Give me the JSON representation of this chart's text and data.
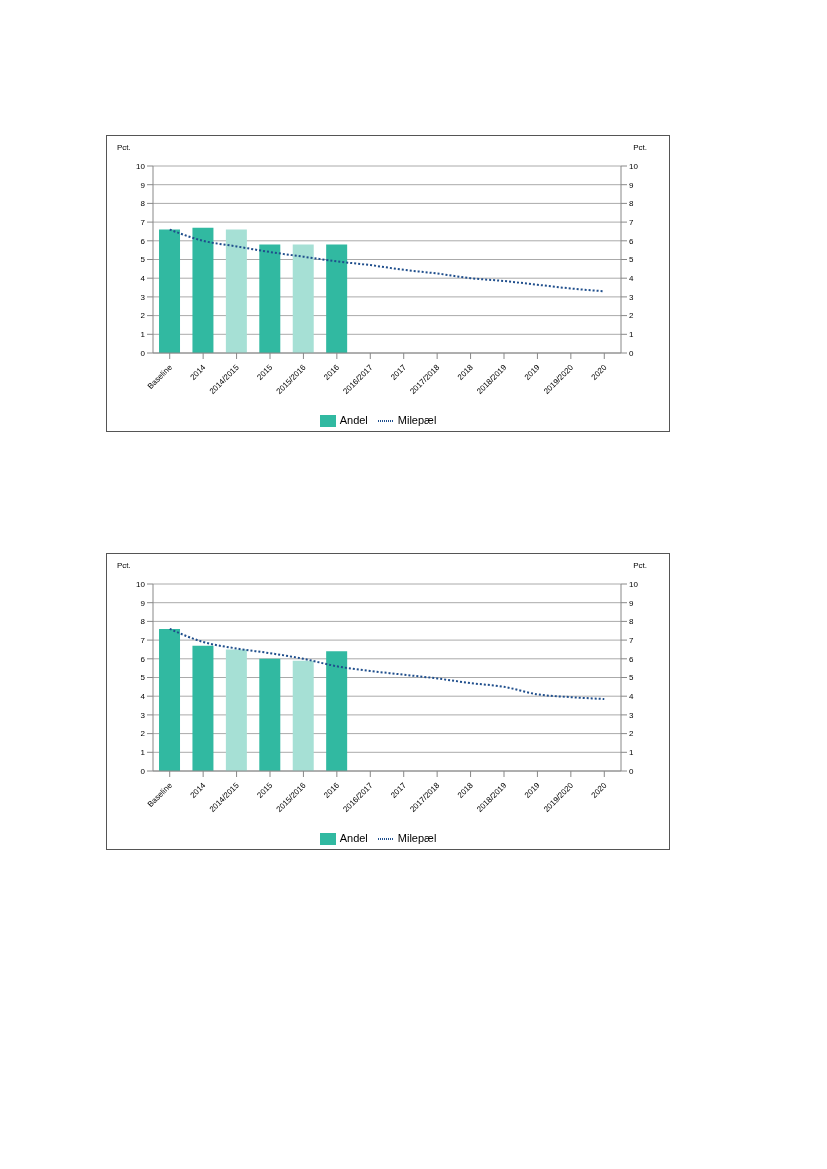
{
  "chart_data": [
    {
      "type": "bar",
      "ylabel": "Pct.",
      "y2label": "Pct.",
      "categories": [
        "Baseline",
        "2014",
        "2014/2015",
        "2015",
        "2015/2016",
        "2016",
        "2016/2017",
        "2017",
        "2017/2018",
        "2018",
        "2018/2019",
        "2019",
        "2019/2020",
        "2020"
      ],
      "series": [
        {
          "name": "Andel",
          "color": "#31b9a1",
          "colors": [
            "#31b9a1",
            "#31b9a1",
            "#a6e0d5",
            "#31b9a1",
            "#a6e0d5",
            "#31b9a1",
            "#31b9a1",
            "#31b9a1",
            "#31b9a1",
            "#31b9a1",
            "#31b9a1",
            "#31b9a1",
            "#31b9a1",
            "#31b9a1"
          ],
          "values": [
            6.6,
            6.7,
            6.6,
            5.8,
            5.8,
            5.8,
            null,
            null,
            null,
            null,
            null,
            null,
            null,
            null
          ]
        },
        {
          "name": "Milepæl",
          "type": "line",
          "color": "#1f4e8c",
          "line_style": "dotted",
          "marker": "none",
          "values": [
            6.6,
            6.0,
            5.7,
            5.4,
            5.15,
            4.9,
            4.7,
            4.45,
            4.25,
            4.0,
            3.85,
            3.65,
            3.45,
            3.3
          ]
        }
      ],
      "ylim": [
        0,
        10
      ],
      "yticks": [
        0,
        1,
        2,
        3,
        4,
        5,
        6,
        7,
        8,
        9,
        10
      ],
      "y2lim": [
        0,
        10
      ],
      "y2ticks": [
        0,
        1,
        2,
        3,
        4,
        5,
        6,
        7,
        8,
        9,
        10
      ],
      "grid": "y",
      "legend": "bottom"
    },
    {
      "type": "bar",
      "ylabel": "Pct.",
      "y2label": "Pct.",
      "categories": [
        "Baseline",
        "2014",
        "2014/2015",
        "2015",
        "2015/2016",
        "2016",
        "2016/2017",
        "2017",
        "2017/2018",
        "2018",
        "2018/2019",
        "2019",
        "2019/2020",
        "2020"
      ],
      "series": [
        {
          "name": "Andel",
          "color": "#31b9a1",
          "colors": [
            "#31b9a1",
            "#31b9a1",
            "#a6e0d5",
            "#31b9a1",
            "#a6e0d5",
            "#31b9a1",
            "#31b9a1",
            "#31b9a1",
            "#31b9a1",
            "#31b9a1",
            "#31b9a1",
            "#31b9a1",
            "#31b9a1",
            "#31b9a1"
          ],
          "values": [
            7.6,
            6.7,
            6.5,
            6.0,
            5.9,
            6.4,
            null,
            null,
            null,
            null,
            null,
            null,
            null,
            null
          ]
        },
        {
          "name": "Milepæl",
          "type": "line",
          "color": "#1f4e8c",
          "line_style": "dotted",
          "marker": "none",
          "values": [
            7.6,
            6.9,
            6.55,
            6.3,
            6.0,
            5.6,
            5.35,
            5.15,
            4.95,
            4.7,
            4.5,
            4.1,
            3.95,
            3.85
          ]
        }
      ],
      "ylim": [
        0,
        10
      ],
      "yticks": [
        0,
        1,
        2,
        3,
        4,
        5,
        6,
        7,
        8,
        9,
        10
      ],
      "y2lim": [
        0,
        10
      ],
      "y2ticks": [
        0,
        1,
        2,
        3,
        4,
        5,
        6,
        7,
        8,
        9,
        10
      ],
      "grid": "y",
      "legend": "bottom"
    }
  ]
}
